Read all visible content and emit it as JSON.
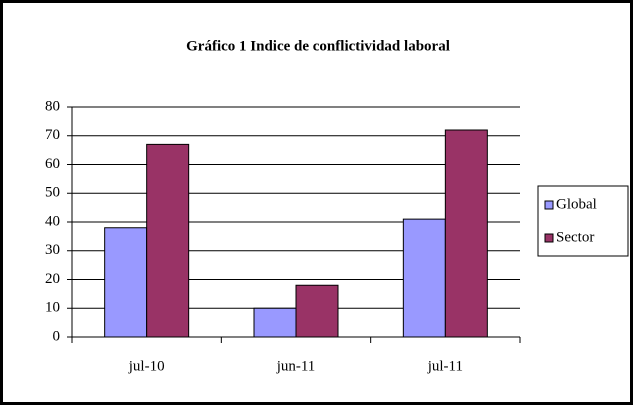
{
  "chart_data": {
    "type": "bar",
    "title": "Gráfico 1 Indice de conflictividad laboral",
    "categories": [
      "jul-10",
      "jun-11",
      "jul-11"
    ],
    "series": [
      {
        "name": "Global",
        "color": "#9999ff",
        "values": [
          38,
          10,
          41
        ]
      },
      {
        "name": "Sector",
        "color": "#993366",
        "values": [
          67,
          18,
          72
        ]
      }
    ],
    "ylim": [
      0,
      80
    ],
    "yticks": [
      0,
      10,
      20,
      30,
      40,
      50,
      60,
      70,
      80
    ],
    "grid": true,
    "legend": "right"
  }
}
